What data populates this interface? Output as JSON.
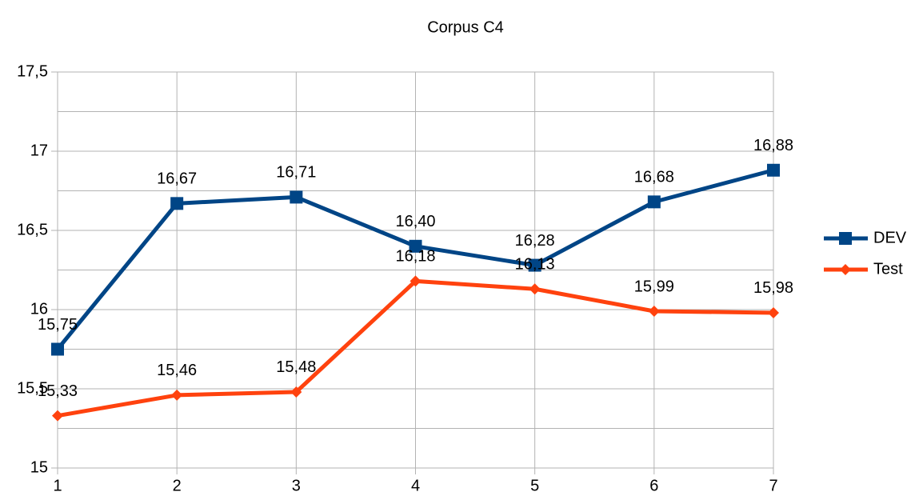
{
  "chart_data": {
    "type": "line",
    "title": "Corpus C4",
    "x": [
      1,
      2,
      3,
      4,
      5,
      6,
      7
    ],
    "xlim": [
      1,
      7
    ],
    "xticks": [
      1,
      2,
      3,
      4,
      5,
      6,
      7
    ],
    "ylim": [
      15,
      17.5
    ],
    "yticks": [
      15,
      {
        "value": 15.5,
        "label": "15,5"
      },
      16,
      {
        "value": 16.5,
        "label": "16,5"
      },
      17,
      {
        "value": 17.5,
        "label": "17,5"
      }
    ],
    "minor_yticks": [
      15.25,
      15.75,
      16.25,
      16.75,
      17.25
    ],
    "grid": true,
    "legend": "right",
    "series": [
      {
        "name": "DEV",
        "color": "#004586",
        "marker": "square",
        "values": [
          15.75,
          16.67,
          16.71,
          16.4,
          16.28,
          16.68,
          16.88
        ],
        "value_labels": [
          "15,75",
          "16,67",
          "16,71",
          "16,40",
          "16,28",
          "16,68",
          "16,88"
        ]
      },
      {
        "name": "Test",
        "color": "#ff420e",
        "marker": "diamond",
        "values": [
          15.33,
          15.46,
          15.48,
          16.18,
          16.13,
          15.99,
          15.98
        ],
        "value_labels": [
          "15,33",
          "15,46",
          "15,48",
          "16,18",
          "16,13",
          "15,99",
          "15,98"
        ]
      }
    ]
  }
}
